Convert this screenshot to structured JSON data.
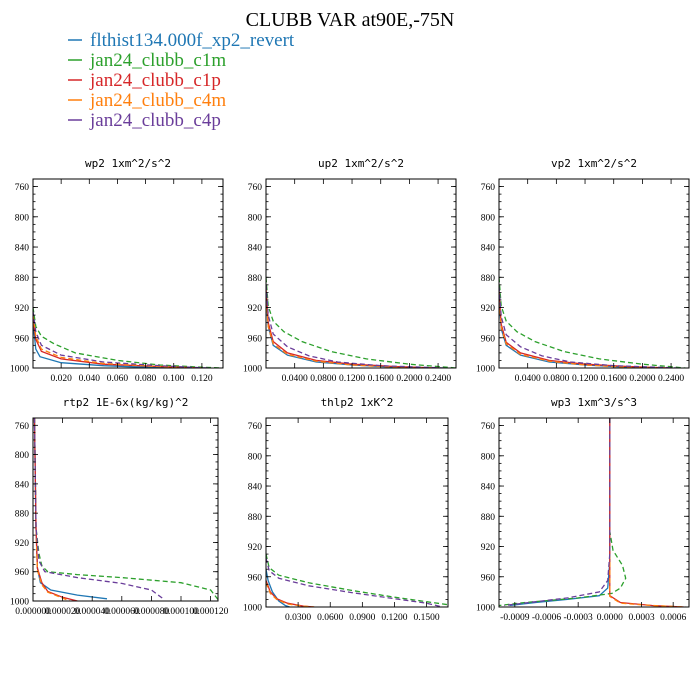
{
  "figure": {
    "title": "CLUBB VAR at90E,-75N",
    "legend": [
      {
        "label": "flthist134.000f_xp2_revert",
        "color": "#1f77b4",
        "dash": "solid"
      },
      {
        "label": "jan24_clubb_c1m",
        "color": "#2ca02c",
        "dash": "dash"
      },
      {
        "label": "jan24_clubb_c1p",
        "color": "#d62728",
        "dash": "solid"
      },
      {
        "label": "jan24_clubb_c4m",
        "color": "#ff7f0e",
        "dash": "dash"
      },
      {
        "label": "jan24_clubb_c4p",
        "color": "#6a3d9a",
        "dash": "dash"
      }
    ]
  },
  "chart_data": [
    {
      "type": "line",
      "title": "wp2  1xm^2/s^2",
      "ylim": [
        1000,
        750
      ],
      "xlim": [
        0,
        0.135
      ],
      "xticks": [
        0.02,
        0.04,
        0.06,
        0.08,
        0.1,
        0.12
      ],
      "xtick_labels": [
        "0.020",
        "0.040",
        "0.060",
        "0.080",
        "0.100",
        "0.120"
      ],
      "yticks": [
        760,
        800,
        840,
        880,
        920,
        960,
        1000
      ],
      "series": [
        {
          "name": "flthist134.000f_xp2_revert",
          "x": [
            0.0,
            0.002,
            0.005,
            0.02,
            0.05,
            0.08,
            0.1
          ],
          "y": [
            940,
            975,
            985,
            993,
            997,
            999,
            1000
          ]
        },
        {
          "name": "jan24_clubb_c1m",
          "x": [
            0.0,
            0.002,
            0.006,
            0.015,
            0.03,
            0.06,
            0.09,
            0.12,
            0.135
          ],
          "y": [
            920,
            945,
            958,
            968,
            980,
            990,
            996,
            999,
            1000
          ]
        },
        {
          "name": "jan24_clubb_c1p",
          "x": [
            0.0,
            0.002,
            0.006,
            0.02,
            0.05,
            0.09,
            0.12
          ],
          "y": [
            935,
            962,
            978,
            988,
            995,
            998,
            1000
          ]
        },
        {
          "name": "jan24_clubb_c4m",
          "x": [
            0.0,
            0.002,
            0.006,
            0.02,
            0.05,
            0.09,
            0.12
          ],
          "y": [
            930,
            958,
            975,
            986,
            994,
            998,
            1000
          ]
        },
        {
          "name": "jan24_clubb_c4p",
          "x": [
            0.0,
            0.002,
            0.006,
            0.02,
            0.05,
            0.09,
            0.125
          ],
          "y": [
            925,
            952,
            970,
            983,
            992,
            997,
            1000
          ]
        }
      ]
    },
    {
      "type": "line",
      "title": "up2  1xm^2/s^2",
      "ylim": [
        1000,
        750
      ],
      "xlim": [
        0,
        0.265
      ],
      "xticks": [
        0.04,
        0.08,
        0.12,
        0.16,
        0.2,
        0.24
      ],
      "xtick_labels": [
        "0.0400",
        "0.0800",
        "0.1200",
        "0.1600",
        "0.2000",
        "0.2400"
      ],
      "yticks": [
        760,
        800,
        840,
        880,
        920,
        960,
        1000
      ],
      "series": [
        {
          "name": "flthist134.000f_xp2_revert",
          "x": [
            0.0,
            0.003,
            0.01,
            0.03,
            0.07,
            0.12,
            0.18,
            0.22
          ],
          "y": [
            900,
            945,
            970,
            983,
            992,
            996,
            999,
            1000
          ]
        },
        {
          "name": "jan24_clubb_c1m",
          "x": [
            0.0,
            0.003,
            0.01,
            0.025,
            0.05,
            0.09,
            0.14,
            0.2,
            0.265
          ],
          "y": [
            880,
            918,
            938,
            952,
            965,
            978,
            988,
            995,
            1000
          ]
        },
        {
          "name": "jan24_clubb_c1p",
          "x": [
            0.0,
            0.003,
            0.01,
            0.03,
            0.07,
            0.12,
            0.18,
            0.24
          ],
          "y": [
            895,
            940,
            965,
            980,
            990,
            995,
            998,
            1000
          ]
        },
        {
          "name": "jan24_clubb_c4m",
          "x": [
            0.0,
            0.003,
            0.01,
            0.03,
            0.07,
            0.12,
            0.18,
            0.24
          ],
          "y": [
            900,
            945,
            968,
            982,
            991,
            996,
            999,
            1000
          ]
        },
        {
          "name": "jan24_clubb_c4p",
          "x": [
            0.0,
            0.003,
            0.01,
            0.03,
            0.06,
            0.1,
            0.16,
            0.25
          ],
          "y": [
            890,
            930,
            955,
            972,
            984,
            992,
            997,
            1000
          ]
        }
      ]
    },
    {
      "type": "line",
      "title": "vp2  1xm^2/s^2",
      "ylim": [
        1000,
        750
      ],
      "xlim": [
        0,
        0.265
      ],
      "xticks": [
        0.04,
        0.08,
        0.12,
        0.16,
        0.2,
        0.24
      ],
      "xtick_labels": [
        "0.0400",
        "0.0800",
        "0.1200",
        "0.1600",
        "0.2000",
        "0.2400"
      ],
      "yticks": [
        760,
        800,
        840,
        880,
        920,
        960,
        1000
      ],
      "series": [
        {
          "name": "flthist134.000f_xp2_revert",
          "x": [
            0.0,
            0.003,
            0.01,
            0.03,
            0.07,
            0.12,
            0.18,
            0.22
          ],
          "y": [
            905,
            948,
            970,
            983,
            992,
            996,
            999,
            1000
          ]
        },
        {
          "name": "jan24_clubb_c1m",
          "x": [
            0.0,
            0.003,
            0.01,
            0.025,
            0.05,
            0.09,
            0.14,
            0.2,
            0.26
          ],
          "y": [
            880,
            918,
            938,
            952,
            965,
            978,
            988,
            995,
            1000
          ]
        },
        {
          "name": "jan24_clubb_c1p",
          "x": [
            0.0,
            0.003,
            0.01,
            0.03,
            0.07,
            0.12,
            0.18,
            0.24
          ],
          "y": [
            898,
            942,
            966,
            980,
            990,
            995,
            998,
            1000
          ]
        },
        {
          "name": "jan24_clubb_c4m",
          "x": [
            0.0,
            0.003,
            0.01,
            0.03,
            0.07,
            0.12,
            0.18,
            0.24
          ],
          "y": [
            902,
            946,
            968,
            982,
            991,
            996,
            999,
            1000
          ]
        },
        {
          "name": "jan24_clubb_c4p",
          "x": [
            0.0,
            0.003,
            0.01,
            0.03,
            0.06,
            0.1,
            0.16,
            0.25
          ],
          "y": [
            892,
            932,
            956,
            972,
            984,
            992,
            997,
            1000
          ]
        }
      ]
    },
    {
      "type": "line",
      "title": "rtp2  1E-6x(kg/kg)^2",
      "ylim": [
        1000,
        750
      ],
      "xlim": [
        0,
        0.000125
      ],
      "xticks": [
        0.0,
        2e-05,
        4e-05,
        6e-05,
        8e-05,
        0.0001,
        0.00012
      ],
      "xtick_labels": [
        "0.000000",
        "0.000020",
        "0.000040",
        "0.000060",
        "0.000080",
        "0.000100",
        "0.000120"
      ],
      "yticks": [
        760,
        800,
        840,
        880,
        920,
        960,
        1000
      ],
      "series": [
        {
          "name": "flthist134.000f_xp2_revert",
          "x": [
            1e-06,
            2e-06,
            3e-06,
            5e-06,
            1.2e-05,
            3e-05,
            5e-05
          ],
          "y": [
            750,
            900,
            955,
            975,
            985,
            992,
            997
          ]
        },
        {
          "name": "jan24_clubb_c1m",
          "x": [
            1e-06,
            2e-06,
            4e-06,
            6e-06,
            1e-05,
            3e-05,
            6e-05,
            0.0001,
            0.00012,
            0.000125
          ],
          "y": [
            750,
            900,
            935,
            952,
            960,
            964,
            968,
            975,
            985,
            998
          ]
        },
        {
          "name": "jan24_clubb_c1p",
          "x": [
            1e-06,
            2e-06,
            3e-06,
            6e-06,
            1e-05,
            2e-05,
            3e-05
          ],
          "y": [
            750,
            900,
            955,
            975,
            987,
            995,
            1000
          ]
        },
        {
          "name": "jan24_clubb_c4m",
          "x": [
            1e-06,
            2e-06,
            3e-06,
            6e-06,
            1e-05,
            2e-05,
            2.5e-05
          ],
          "y": [
            750,
            900,
            958,
            978,
            988,
            996,
            1000
          ]
        },
        {
          "name": "jan24_clubb_c4p",
          "x": [
            1e-06,
            2e-06,
            4e-06,
            8e-06,
            3e-05,
            6e-05,
            8e-05,
            8.8e-05
          ],
          "y": [
            750,
            900,
            945,
            960,
            968,
            976,
            985,
            997
          ]
        }
      ]
    },
    {
      "type": "line",
      "title": "thlp2  1xK^2",
      "ylim": [
        1000,
        750
      ],
      "xlim": [
        0,
        0.17
      ],
      "xticks": [
        0.03,
        0.06,
        0.09,
        0.12,
        0.15
      ],
      "xtick_labels": [
        "0.0300",
        "0.0600",
        "0.0900",
        "0.1200",
        "0.1500"
      ],
      "yticks": [
        760,
        800,
        840,
        880,
        920,
        960,
        1000
      ],
      "series": [
        {
          "name": "flthist134.000f_xp2_revert",
          "x": [
            0.0,
            0.002,
            0.006,
            0.012,
            0.018,
            0.022
          ],
          "y": [
            950,
            965,
            980,
            992,
            998,
            1000
          ]
        },
        {
          "name": "jan24_clubb_c1m",
          "x": [
            0.0,
            0.003,
            0.012,
            0.04,
            0.08,
            0.12,
            0.15,
            0.17
          ],
          "y": [
            930,
            948,
            958,
            968,
            978,
            987,
            993,
            997
          ]
        },
        {
          "name": "jan24_clubb_c1p",
          "x": [
            0.0,
            0.004,
            0.01,
            0.02,
            0.035,
            0.045
          ],
          "y": [
            965,
            980,
            989,
            995,
            999,
            1000
          ]
        },
        {
          "name": "jan24_clubb_c4m",
          "x": [
            0.0,
            0.004,
            0.01,
            0.02,
            0.035,
            0.045
          ],
          "y": [
            968,
            982,
            990,
            996,
            999,
            1000
          ]
        },
        {
          "name": "jan24_clubb_c4p",
          "x": [
            0.0,
            0.003,
            0.012,
            0.04,
            0.08,
            0.12,
            0.15,
            0.165
          ],
          "y": [
            935,
            952,
            962,
            972,
            981,
            989,
            995,
            1000
          ]
        }
      ]
    },
    {
      "type": "line",
      "title": "wp3  1xm^3/s^3",
      "ylim": [
        1000,
        750
      ],
      "xlim": [
        -0.00105,
        0.00075
      ],
      "xticks": [
        -0.0009,
        -0.0006,
        -0.0003,
        0.0,
        0.0003,
        0.0006
      ],
      "xtick_labels": [
        "-0.0009",
        "-0.0006",
        "-0.0003",
        "0.0000",
        "0.0003",
        "0.0006"
      ],
      "yticks": [
        760,
        800,
        840,
        880,
        920,
        960,
        1000
      ],
      "series": [
        {
          "name": "flthist134.000f_xp2_revert",
          "x": [
            0.0,
            0.0,
            -2e-05,
            -0.0001,
            -0.0004,
            -0.0007,
            -0.00095
          ],
          "y": [
            750,
            940,
            975,
            985,
            990,
            994,
            998
          ]
        },
        {
          "name": "jan24_clubb_c1m",
          "x": [
            0.0,
            0.0,
            3e-05,
            0.00012,
            0.00015,
            0.0001,
            2e-05,
            -0.0003,
            -0.0008,
            -0.00105
          ],
          "y": [
            750,
            900,
            925,
            945,
            962,
            975,
            982,
            988,
            994,
            998
          ]
        },
        {
          "name": "jan24_clubb_c1p",
          "x": [
            0.0,
            0.0,
            0.0,
            0.0001,
            0.0004,
            0.0007
          ],
          "y": [
            750,
            940,
            985,
            994,
            998,
            1000
          ]
        },
        {
          "name": "jan24_clubb_c4m",
          "x": [
            0.0,
            0.0,
            0.0,
            0.0001,
            0.0004,
            0.00072
          ],
          "y": [
            750,
            940,
            986,
            995,
            998,
            1000
          ]
        },
        {
          "name": "jan24_clubb_c4p",
          "x": [
            0.0,
            0.0,
            -2e-05,
            -0.0001,
            -0.0004,
            -0.0007,
            -0.001
          ],
          "y": [
            750,
            930,
            965,
            980,
            988,
            993,
            998
          ]
        }
      ]
    }
  ]
}
